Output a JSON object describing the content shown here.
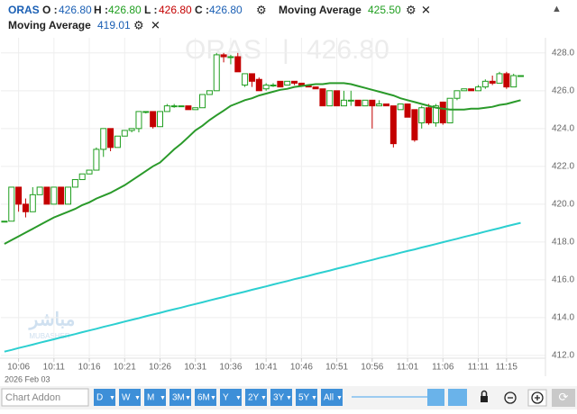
{
  "header": {
    "symbol": "ORAS",
    "o_label": "O :",
    "o": "426.80",
    "h_label": "H :",
    "h": "426.80",
    "l_label": "L :",
    "l": "426.80",
    "c_label": "C :",
    "c": "426.80",
    "ma1_name": "Moving Average",
    "ma1_value": "425.50",
    "ma2_name": "Moving Average",
    "ma2_value": "419.01"
  },
  "watermark": {
    "logo": "مباشر",
    "logo_sub": "MUBASHER"
  },
  "chart_data": {
    "type": "candlestick",
    "date_label": "2026 Feb 03",
    "categories": [
      null,
      null,
      "10:06",
      null,
      null,
      null,
      null,
      "10:11",
      null,
      null,
      null,
      null,
      "10:16",
      null,
      null,
      null,
      null,
      "10:21",
      null,
      null,
      null,
      null,
      "10:26",
      null,
      null,
      null,
      null,
      "10:31",
      null,
      null,
      null,
      null,
      "10:36",
      null,
      null,
      null,
      null,
      "10:41",
      null,
      null,
      null,
      null,
      "10:46",
      null,
      null,
      null,
      null,
      "10:51",
      null,
      null,
      null,
      null,
      "10:56",
      null,
      null,
      null,
      null,
      "11:01",
      null,
      null,
      null,
      null,
      "11:06",
      null,
      null,
      null,
      null,
      "11:11",
      null,
      null,
      null,
      "11:15",
      null,
      null
    ],
    "ohlc": [
      [
        419.1,
        419.1,
        419.1,
        419.1
      ],
      [
        419.1,
        420.9,
        419.1,
        420.9
      ],
      [
        420.9,
        420.9,
        419.6,
        420.0
      ],
      [
        420.0,
        420.3,
        419.3,
        419.6
      ],
      [
        419.6,
        420.9,
        419.6,
        420.5
      ],
      [
        420.5,
        420.9,
        420.5,
        420.9
      ],
      [
        420.9,
        420.9,
        420.0,
        420.0
      ],
      [
        420.0,
        420.9,
        420.0,
        420.9
      ],
      [
        420.9,
        420.9,
        420.0,
        420.0
      ],
      [
        420.0,
        420.9,
        420.0,
        420.9
      ],
      [
        420.9,
        421.3,
        420.9,
        421.3
      ],
      [
        421.3,
        421.6,
        421.3,
        421.6
      ],
      [
        421.6,
        421.8,
        421.6,
        421.8
      ],
      [
        421.8,
        423.0,
        421.8,
        422.9
      ],
      [
        422.9,
        424.0,
        422.5,
        424.0
      ],
      [
        424.0,
        424.0,
        422.8,
        423.0
      ],
      [
        423.0,
        423.6,
        423.0,
        423.6
      ],
      [
        423.6,
        423.9,
        423.6,
        423.9
      ],
      [
        423.9,
        424.0,
        423.8,
        424.0
      ],
      [
        424.0,
        424.9,
        423.8,
        424.9
      ],
      [
        424.9,
        424.9,
        424.8,
        424.9
      ],
      [
        424.9,
        424.9,
        424.0,
        424.1
      ],
      [
        424.1,
        424.9,
        424.1,
        424.9
      ],
      [
        424.9,
        425.3,
        424.9,
        425.2
      ],
      [
        425.2,
        425.3,
        425.1,
        425.2
      ],
      [
        425.2,
        425.2,
        425.2,
        425.2
      ],
      [
        425.2,
        425.2,
        425.0,
        425.0
      ],
      [
        425.0,
        425.1,
        425.0,
        425.1
      ],
      [
        425.1,
        425.8,
        425.1,
        425.8
      ],
      [
        425.8,
        426.0,
        425.8,
        426.0
      ],
      [
        426.0,
        428.0,
        426.0,
        427.9
      ],
      [
        427.9,
        428.0,
        427.5,
        427.8
      ],
      [
        427.8,
        427.9,
        427.4,
        427.8
      ],
      [
        427.8,
        428.0,
        427.0,
        427.0
      ],
      [
        426.3,
        426.9,
        426.2,
        426.9
      ],
      [
        426.9,
        426.9,
        426.2,
        426.5
      ],
      [
        426.6,
        426.7,
        426.0,
        426.0
      ],
      [
        426.1,
        426.4,
        426.0,
        426.3
      ],
      [
        426.3,
        426.4,
        426.2,
        426.3
      ],
      [
        426.5,
        426.5,
        426.2,
        426.2
      ],
      [
        426.3,
        426.5,
        426.3,
        426.5
      ],
      [
        426.5,
        426.5,
        426.3,
        426.4
      ],
      [
        426.4,
        426.4,
        426.3,
        426.3
      ],
      [
        426.3,
        426.3,
        426.2,
        426.2
      ],
      [
        426.2,
        426.2,
        426.1,
        426.1
      ],
      [
        426.1,
        426.1,
        425.2,
        425.2
      ],
      [
        425.2,
        426.0,
        425.2,
        426.0
      ],
      [
        426.0,
        426.0,
        425.2,
        425.2
      ],
      [
        425.2,
        426.0,
        425.2,
        425.5
      ],
      [
        425.5,
        426.0,
        425.2,
        425.5
      ],
      [
        425.5,
        425.5,
        425.2,
        425.2
      ],
      [
        425.2,
        425.5,
        425.2,
        425.5
      ],
      [
        425.5,
        425.5,
        424.0,
        425.2
      ],
      [
        425.2,
        425.5,
        425.2,
        425.3
      ],
      [
        425.3,
        425.3,
        425.2,
        425.2
      ],
      [
        425.2,
        425.2,
        423.0,
        423.2
      ],
      [
        425.0,
        425.3,
        425.0,
        425.3
      ],
      [
        425.3,
        425.3,
        424.6,
        424.6
      ],
      [
        425.0,
        425.0,
        423.3,
        423.4
      ],
      [
        424.3,
        425.2,
        424.0,
        425.1
      ],
      [
        425.1,
        425.3,
        424.2,
        424.3
      ],
      [
        424.3,
        425.3,
        424.1,
        425.2
      ],
      [
        425.4,
        425.4,
        424.2,
        424.3
      ],
      [
        424.3,
        425.6,
        424.3,
        425.6
      ],
      [
        425.6,
        426.0,
        425.5,
        426.0
      ],
      [
        426.0,
        426.1,
        426.0,
        426.1
      ],
      [
        426.1,
        426.1,
        426.0,
        426.0
      ],
      [
        426.0,
        426.3,
        426.0,
        426.2
      ],
      [
        426.2,
        426.6,
        426.1,
        426.5
      ],
      [
        426.5,
        426.8,
        426.3,
        426.4
      ],
      [
        426.4,
        427.0,
        426.4,
        426.9
      ],
      [
        426.9,
        427.0,
        426.1,
        426.2
      ],
      [
        426.2,
        426.9,
        426.2,
        426.8
      ],
      [
        426.8,
        426.8,
        426.8,
        426.8
      ]
    ],
    "up_color": "#1f9e1f",
    "down_color": "#c40000",
    "series": [
      {
        "name": "Moving Average",
        "color": "#2a9a2a",
        "values": [
          417.9,
          418.1,
          418.3,
          418.5,
          418.7,
          418.9,
          419.1,
          419.3,
          419.45,
          419.6,
          419.75,
          419.95,
          420.1,
          420.3,
          420.45,
          420.6,
          420.8,
          421.0,
          421.25,
          421.5,
          421.75,
          422.0,
          422.2,
          422.55,
          422.9,
          423.2,
          423.55,
          423.9,
          424.15,
          424.45,
          424.7,
          424.95,
          425.2,
          425.35,
          425.5,
          425.6,
          425.75,
          425.85,
          425.95,
          426.05,
          426.1,
          426.2,
          426.25,
          426.3,
          426.35,
          426.35,
          426.4,
          426.4,
          426.4,
          426.35,
          426.25,
          426.15,
          426.05,
          425.95,
          425.85,
          425.75,
          425.6,
          425.5,
          425.4,
          425.3,
          425.2,
          425.1,
          425.05,
          425.0,
          425.0,
          425.0,
          425.05,
          425.05,
          425.1,
          425.15,
          425.25,
          425.3,
          425.4,
          425.5
        ]
      },
      {
        "name": "Moving Average",
        "color": "#2ccfd0",
        "values": [
          412.2,
          412.29,
          412.39,
          412.48,
          412.57,
          412.67,
          412.76,
          412.85,
          412.95,
          413.04,
          413.13,
          413.23,
          413.32,
          413.41,
          413.51,
          413.6,
          413.69,
          413.79,
          413.88,
          413.97,
          414.07,
          414.16,
          414.25,
          414.35,
          414.44,
          414.53,
          414.63,
          414.72,
          414.81,
          414.91,
          415.0,
          415.09,
          415.19,
          415.28,
          415.37,
          415.47,
          415.56,
          415.65,
          415.75,
          415.84,
          415.93,
          416.03,
          416.12,
          416.21,
          416.31,
          416.4,
          416.49,
          416.59,
          416.68,
          416.77,
          416.87,
          416.96,
          417.05,
          417.15,
          417.24,
          417.33,
          417.43,
          417.52,
          417.61,
          417.71,
          417.8,
          417.89,
          417.99,
          418.08,
          418.17,
          418.27,
          418.36,
          418.45,
          418.55,
          418.64,
          418.73,
          418.83,
          418.92,
          419.01
        ]
      }
    ],
    "ylim": [
      411.9,
      428.8
    ],
    "yticks": [
      {
        "value": 412,
        "label": "412.0"
      },
      {
        "value": 414,
        "label": "414.0"
      },
      {
        "value": 416,
        "label": "416.0"
      },
      {
        "value": 418,
        "label": "418.0"
      },
      {
        "value": 420,
        "label": "420.0"
      },
      {
        "value": 422,
        "label": "422.0"
      },
      {
        "value": 424,
        "label": "424.0"
      },
      {
        "value": 426,
        "label": "426.0"
      },
      {
        "value": 428,
        "label": "428.0"
      }
    ],
    "grid": true
  },
  "toolbar": {
    "addon_placeholder": "Chart Addon",
    "periods": [
      "D",
      "W",
      "M",
      "3M",
      "6M",
      "Y",
      "2Y",
      "3Y",
      "5Y",
      "All"
    ]
  }
}
